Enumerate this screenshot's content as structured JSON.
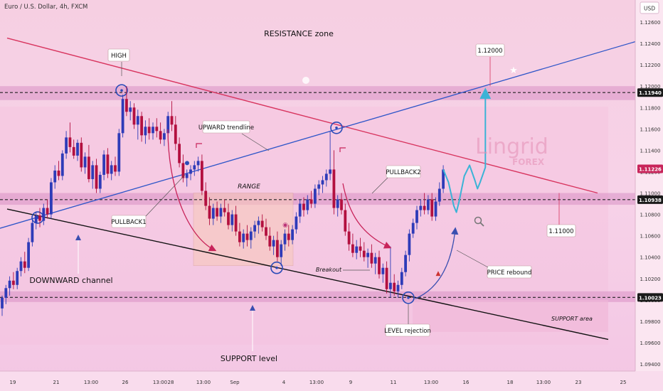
{
  "header": {
    "symbol": "Euro / U.S. Dollar, 4h, FXCM",
    "currency": "USD"
  },
  "watermark": {
    "brand": "Lingrid",
    "sub": "FOREX"
  },
  "colors": {
    "bull": "#2e3bb8",
    "bear": "#b3103f",
    "trend_up": "#2d55c8",
    "trend_down": "#d8355f",
    "channel": "#111111",
    "zone": "#d88fc4",
    "forecast": "#3bb3d6"
  },
  "chart_data": {
    "type": "candlestick",
    "y_axis": {
      "ticks": [
        "1.12600",
        "1.12400",
        "1.12200",
        "1.12000",
        "1.11800",
        "1.11600",
        "1.11400",
        "1.11200",
        "1.11000",
        "1.10800",
        "1.10600",
        "1.10400",
        "1.10200",
        "1.10000",
        "1.09800",
        "1.09600",
        "1.09400"
      ],
      "range": [
        1.0915,
        1.1278
      ],
      "highlighted": [
        {
          "label": "1.11940",
          "value": 1.1194,
          "style": "dark"
        },
        {
          "label": "1.11226",
          "value": 1.11226,
          "style": "red"
        },
        {
          "label": "1.10938",
          "value": 1.10938,
          "style": "dark"
        },
        {
          "label": "1.10023",
          "value": 1.10023,
          "style": "dark"
        }
      ]
    },
    "x_axis": {
      "ticks": [
        "19",
        "21",
        "13:00",
        "26",
        "13:00",
        "28",
        "13:00",
        "Sep",
        "4",
        "13:00",
        "9",
        "11",
        "13:00",
        "16",
        "18",
        "13:00",
        "23",
        "25"
      ]
    },
    "zones": [
      {
        "name": "resistance-band",
        "from": 1.1187,
        "to": 1.12
      },
      {
        "name": "range-band",
        "from": 1.1089,
        "to": 1.11
      },
      {
        "name": "support-band",
        "from": 1.0998,
        "to": 1.1008
      }
    ],
    "levels": [
      1.1194,
      1.10938,
      1.10023
    ],
    "candles": [
      {
        "o": 1.0992,
        "h": 1.1004,
        "l": 1.0985,
        "c": 1.1002
      },
      {
        "o": 1.1002,
        "h": 1.1014,
        "l": 1.0996,
        "c": 1.1011
      },
      {
        "o": 1.1011,
        "h": 1.1022,
        "l": 1.1004,
        "c": 1.1018
      },
      {
        "o": 1.1018,
        "h": 1.1026,
        "l": 1.101,
        "c": 1.1014
      },
      {
        "o": 1.1014,
        "h": 1.103,
        "l": 1.101,
        "c": 1.1027
      },
      {
        "o": 1.1027,
        "h": 1.104,
        "l": 1.1022,
        "c": 1.1036
      },
      {
        "o": 1.1036,
        "h": 1.1045,
        "l": 1.1025,
        "c": 1.103
      },
      {
        "o": 1.103,
        "h": 1.1058,
        "l": 1.1027,
        "c": 1.1054
      },
      {
        "o": 1.1054,
        "h": 1.1076,
        "l": 1.105,
        "c": 1.1072
      },
      {
        "o": 1.1072,
        "h": 1.1082,
        "l": 1.1066,
        "c": 1.1079
      },
      {
        "o": 1.1079,
        "h": 1.1086,
        "l": 1.1068,
        "c": 1.1074
      },
      {
        "o": 1.1074,
        "h": 1.109,
        "l": 1.107,
        "c": 1.1086
      },
      {
        "o": 1.1086,
        "h": 1.1094,
        "l": 1.1076,
        "c": 1.108
      },
      {
        "o": 1.108,
        "h": 1.1114,
        "l": 1.1076,
        "c": 1.111
      },
      {
        "o": 1.111,
        "h": 1.1126,
        "l": 1.1104,
        "c": 1.1121
      },
      {
        "o": 1.1121,
        "h": 1.113,
        "l": 1.1112,
        "c": 1.1116
      },
      {
        "o": 1.1116,
        "h": 1.114,
        "l": 1.1112,
        "c": 1.1137
      },
      {
        "o": 1.1137,
        "h": 1.1158,
        "l": 1.1132,
        "c": 1.1152
      },
      {
        "o": 1.1152,
        "h": 1.1166,
        "l": 1.1138,
        "c": 1.1143
      },
      {
        "o": 1.1143,
        "h": 1.115,
        "l": 1.1132,
        "c": 1.1135
      },
      {
        "o": 1.1135,
        "h": 1.115,
        "l": 1.113,
        "c": 1.1147
      },
      {
        "o": 1.1147,
        "h": 1.1152,
        "l": 1.112,
        "c": 1.1124
      },
      {
        "o": 1.1124,
        "h": 1.1138,
        "l": 1.1118,
        "c": 1.1134
      },
      {
        "o": 1.1134,
        "h": 1.1145,
        "l": 1.111,
        "c": 1.1113
      },
      {
        "o": 1.1113,
        "h": 1.113,
        "l": 1.1104,
        "c": 1.1126
      },
      {
        "o": 1.1126,
        "h": 1.1132,
        "l": 1.11,
        "c": 1.1104
      },
      {
        "o": 1.1104,
        "h": 1.112,
        "l": 1.11,
        "c": 1.1117
      },
      {
        "o": 1.1117,
        "h": 1.114,
        "l": 1.1112,
        "c": 1.1136
      },
      {
        "o": 1.1136,
        "h": 1.1142,
        "l": 1.1114,
        "c": 1.1118
      },
      {
        "o": 1.1118,
        "h": 1.113,
        "l": 1.1112,
        "c": 1.1126
      },
      {
        "o": 1.1126,
        "h": 1.1134,
        "l": 1.1116,
        "c": 1.112
      },
      {
        "o": 1.112,
        "h": 1.116,
        "l": 1.1116,
        "c": 1.1156
      },
      {
        "o": 1.1156,
        "h": 1.1192,
        "l": 1.1152,
        "c": 1.1188
      },
      {
        "o": 1.1188,
        "h": 1.12,
        "l": 1.1172,
        "c": 1.1176
      },
      {
        "o": 1.1176,
        "h": 1.1186,
        "l": 1.1168,
        "c": 1.118
      },
      {
        "o": 1.118,
        "h": 1.1184,
        "l": 1.116,
        "c": 1.1164
      },
      {
        "o": 1.1164,
        "h": 1.1178,
        "l": 1.115,
        "c": 1.1172
      },
      {
        "o": 1.1172,
        "h": 1.1176,
        "l": 1.1148,
        "c": 1.1154
      },
      {
        "o": 1.1154,
        "h": 1.1168,
        "l": 1.1146,
        "c": 1.1162
      },
      {
        "o": 1.1162,
        "h": 1.117,
        "l": 1.115,
        "c": 1.1156
      },
      {
        "o": 1.1156,
        "h": 1.1166,
        "l": 1.115,
        "c": 1.1162
      },
      {
        "o": 1.1162,
        "h": 1.117,
        "l": 1.1152,
        "c": 1.1158
      },
      {
        "o": 1.1158,
        "h": 1.1166,
        "l": 1.1146,
        "c": 1.115
      },
      {
        "o": 1.115,
        "h": 1.116,
        "l": 1.1144,
        "c": 1.1156
      },
      {
        "o": 1.1156,
        "h": 1.1176,
        "l": 1.1152,
        "c": 1.1172
      },
      {
        "o": 1.1172,
        "h": 1.1186,
        "l": 1.1158,
        "c": 1.1164
      },
      {
        "o": 1.1164,
        "h": 1.1172,
        "l": 1.114,
        "c": 1.1146
      },
      {
        "o": 1.1146,
        "h": 1.1152,
        "l": 1.1124,
        "c": 1.1128
      },
      {
        "o": 1.1128,
        "h": 1.1136,
        "l": 1.111,
        "c": 1.1114
      },
      {
        "o": 1.1114,
        "h": 1.1122,
        "l": 1.1106,
        "c": 1.1118
      },
      {
        "o": 1.1118,
        "h": 1.1126,
        "l": 1.1112,
        "c": 1.1122
      },
      {
        "o": 1.1122,
        "h": 1.113,
        "l": 1.1116,
        "c": 1.1126
      },
      {
        "o": 1.1126,
        "h": 1.1134,
        "l": 1.112,
        "c": 1.113
      },
      {
        "o": 1.113,
        "h": 1.1136,
        "l": 1.1098,
        "c": 1.1102
      },
      {
        "o": 1.1102,
        "h": 1.111,
        "l": 1.1084,
        "c": 1.1088
      },
      {
        "o": 1.1088,
        "h": 1.1096,
        "l": 1.107,
        "c": 1.1076
      },
      {
        "o": 1.1076,
        "h": 1.109,
        "l": 1.107,
        "c": 1.1086
      },
      {
        "o": 1.1086,
        "h": 1.1092,
        "l": 1.1074,
        "c": 1.1078
      },
      {
        "o": 1.1078,
        "h": 1.109,
        "l": 1.1072,
        "c": 1.1086
      },
      {
        "o": 1.1086,
        "h": 1.1094,
        "l": 1.1078,
        "c": 1.1082
      },
      {
        "o": 1.1082,
        "h": 1.109,
        "l": 1.1066,
        "c": 1.107
      },
      {
        "o": 1.107,
        "h": 1.1084,
        "l": 1.1064,
        "c": 1.108
      },
      {
        "o": 1.108,
        "h": 1.1088,
        "l": 1.106,
        "c": 1.1064
      },
      {
        "o": 1.1064,
        "h": 1.1072,
        "l": 1.105,
        "c": 1.1054
      },
      {
        "o": 1.1054,
        "h": 1.1066,
        "l": 1.1048,
        "c": 1.1062
      },
      {
        "o": 1.1062,
        "h": 1.107,
        "l": 1.105,
        "c": 1.1056
      },
      {
        "o": 1.1056,
        "h": 1.1068,
        "l": 1.1048,
        "c": 1.1064
      },
      {
        "o": 1.1064,
        "h": 1.1074,
        "l": 1.1058,
        "c": 1.107
      },
      {
        "o": 1.107,
        "h": 1.1078,
        "l": 1.1062,
        "c": 1.1074
      },
      {
        "o": 1.1074,
        "h": 1.108,
        "l": 1.1064,
        "c": 1.1068
      },
      {
        "o": 1.1068,
        "h": 1.1076,
        "l": 1.1056,
        "c": 1.106
      },
      {
        "o": 1.106,
        "h": 1.1068,
        "l": 1.1046,
        "c": 1.105
      },
      {
        "o": 1.105,
        "h": 1.106,
        "l": 1.1042,
        "c": 1.1056
      },
      {
        "o": 1.1056,
        "h": 1.1064,
        "l": 1.1036,
        "c": 1.104
      },
      {
        "o": 1.104,
        "h": 1.1056,
        "l": 1.1032,
        "c": 1.1052
      },
      {
        "o": 1.1052,
        "h": 1.1066,
        "l": 1.1046,
        "c": 1.1062
      },
      {
        "o": 1.1062,
        "h": 1.107,
        "l": 1.105,
        "c": 1.1056
      },
      {
        "o": 1.1056,
        "h": 1.107,
        "l": 1.1052,
        "c": 1.1066
      },
      {
        "o": 1.1066,
        "h": 1.1082,
        "l": 1.1062,
        "c": 1.1078
      },
      {
        "o": 1.1078,
        "h": 1.1094,
        "l": 1.1072,
        "c": 1.109
      },
      {
        "o": 1.109,
        "h": 1.1096,
        "l": 1.1078,
        "c": 1.1084
      },
      {
        "o": 1.1084,
        "h": 1.1098,
        "l": 1.108,
        "c": 1.1094
      },
      {
        "o": 1.1094,
        "h": 1.1102,
        "l": 1.1086,
        "c": 1.109
      },
      {
        "o": 1.109,
        "h": 1.1108,
        "l": 1.1086,
        "c": 1.1104
      },
      {
        "o": 1.1104,
        "h": 1.1112,
        "l": 1.1098,
        "c": 1.1108
      },
      {
        "o": 1.1108,
        "h": 1.1116,
        "l": 1.11,
        "c": 1.1112
      },
      {
        "o": 1.1112,
        "h": 1.1122,
        "l": 1.1106,
        "c": 1.1118
      },
      {
        "o": 1.1118,
        "h": 1.1158,
        "l": 1.1112,
        "c": 1.1122
      },
      {
        "o": 1.1122,
        "h": 1.114,
        "l": 1.108,
        "c": 1.1086
      },
      {
        "o": 1.1086,
        "h": 1.1098,
        "l": 1.1078,
        "c": 1.1094
      },
      {
        "o": 1.1094,
        "h": 1.11,
        "l": 1.108,
        "c": 1.1084
      },
      {
        "o": 1.1084,
        "h": 1.109,
        "l": 1.106,
        "c": 1.1064
      },
      {
        "o": 1.1064,
        "h": 1.1072,
        "l": 1.1046,
        "c": 1.1052
      },
      {
        "o": 1.1052,
        "h": 1.1062,
        "l": 1.104,
        "c": 1.1044
      },
      {
        "o": 1.1044,
        "h": 1.1056,
        "l": 1.1038,
        "c": 1.105
      },
      {
        "o": 1.105,
        "h": 1.1058,
        "l": 1.104,
        "c": 1.1046
      },
      {
        "o": 1.1046,
        "h": 1.1054,
        "l": 1.1036,
        "c": 1.104
      },
      {
        "o": 1.104,
        "h": 1.1048,
        "l": 1.103,
        "c": 1.1044
      },
      {
        "o": 1.1044,
        "h": 1.1052,
        "l": 1.103,
        "c": 1.1034
      },
      {
        "o": 1.1034,
        "h": 1.1044,
        "l": 1.1024,
        "c": 1.104
      },
      {
        "o": 1.104,
        "h": 1.1046,
        "l": 1.102,
        "c": 1.1024
      },
      {
        "o": 1.1024,
        "h": 1.1034,
        "l": 1.1016,
        "c": 1.103
      },
      {
        "o": 1.103,
        "h": 1.1036,
        "l": 1.1006,
        "c": 1.101
      },
      {
        "o": 1.101,
        "h": 1.105,
        "l": 1.1002,
        "c": 1.1016
      },
      {
        "o": 1.1016,
        "h": 1.1024,
        "l": 1.1004,
        "c": 1.1008
      },
      {
        "o": 1.1008,
        "h": 1.1018,
        "l": 1.1002,
        "c": 1.1014
      },
      {
        "o": 1.1014,
        "h": 1.103,
        "l": 1.101,
        "c": 1.1026
      },
      {
        "o": 1.1026,
        "h": 1.1046,
        "l": 1.1022,
        "c": 1.1042
      },
      {
        "o": 1.1042,
        "h": 1.1066,
        "l": 1.1036,
        "c": 1.1062
      },
      {
        "o": 1.1062,
        "h": 1.1076,
        "l": 1.1058,
        "c": 1.1072
      },
      {
        "o": 1.1072,
        "h": 1.1088,
        "l": 1.1066,
        "c": 1.1084
      },
      {
        "o": 1.1084,
        "h": 1.1094,
        "l": 1.1078,
        "c": 1.1088
      },
      {
        "o": 1.1088,
        "h": 1.11,
        "l": 1.108,
        "c": 1.1084
      },
      {
        "o": 1.1084,
        "h": 1.1098,
        "l": 1.108,
        "c": 1.1094
      },
      {
        "o": 1.1094,
        "h": 1.11,
        "l": 1.1074,
        "c": 1.1078
      },
      {
        "o": 1.1078,
        "h": 1.1096,
        "l": 1.1074,
        "c": 1.1092
      },
      {
        "o": 1.1092,
        "h": 1.111,
        "l": 1.1088,
        "c": 1.1104
      },
      {
        "o": 1.1104,
        "h": 1.1126,
        "l": 1.11,
        "c": 1.1122
      }
    ],
    "forecast_path": [
      [
        1.1122,
        0
      ],
      [
        1.111,
        2
      ],
      [
        1.1088,
        4
      ],
      [
        1.1082,
        5
      ],
      [
        1.1092,
        6
      ],
      [
        1.1116,
        8
      ],
      [
        1.1126,
        10
      ],
      [
        1.1112,
        12
      ],
      [
        1.1104,
        13
      ],
      [
        1.111,
        14
      ],
      [
        1.1124,
        16
      ],
      [
        1.114,
        16
      ],
      [
        1.1196,
        16
      ]
    ],
    "annotations": {
      "resistance_zone": "RESISTANCE zone",
      "high": "HIGH",
      "upward_trendline": "UPWARD trendline",
      "range": "RANGE",
      "pullback1": "PULLBACK1",
      "pullback2": "PULLBACK2",
      "downward_channel": "DOWNWARD channel",
      "breakout": "Breakout",
      "price_rebound": "PRICE rebound",
      "support_level": "SUPPORT level",
      "support_area": "SUPPORT area",
      "level_rejection": "LEVEL rejection",
      "target_upper": "1.12000",
      "target_lower": "1.11000"
    }
  }
}
